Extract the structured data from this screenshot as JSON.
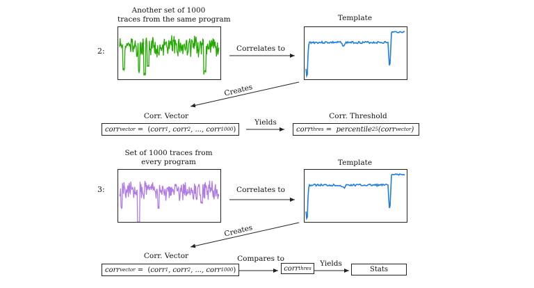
{
  "step2": {
    "number": "2:",
    "traces_caption": [
      "Another set of 1000",
      "traces from the same program"
    ],
    "template_caption": "Template",
    "correlates_label": "Correlates to",
    "creates_label": "Creates",
    "vector_caption": "Corr. Vector",
    "vector_formula_lhs": "corr",
    "vector_formula_lhs_sub": "vector",
    "vector_formula_rhs": "= (corr",
    "vector_formula_items": [
      "1",
      "2",
      "1000"
    ],
    "yields_label": "Yields",
    "threshold_caption": "Corr. Threshold",
    "threshold_lhs": "corr",
    "threshold_lhs_sub": "thres",
    "threshold_rhs": "= percentile",
    "threshold_pct": "25",
    "threshold_arg": "corr",
    "threshold_arg_sub": "vector",
    "trace_color": "#22aa00"
  },
  "step3": {
    "number": "3:",
    "traces_caption": [
      "Set of 1000 traces from",
      "every program"
    ],
    "template_caption": "Template",
    "correlates_label": "Correlates to",
    "creates_label": "Creates",
    "vector_caption": "Corr. Vector",
    "compares_label": "Compares to",
    "thres_box": "corr",
    "thres_box_sub": "thres",
    "yields_label": "Yields",
    "stats_label": "Stats",
    "trace_color": "#b07be6"
  },
  "template_color": "#1f7de0"
}
